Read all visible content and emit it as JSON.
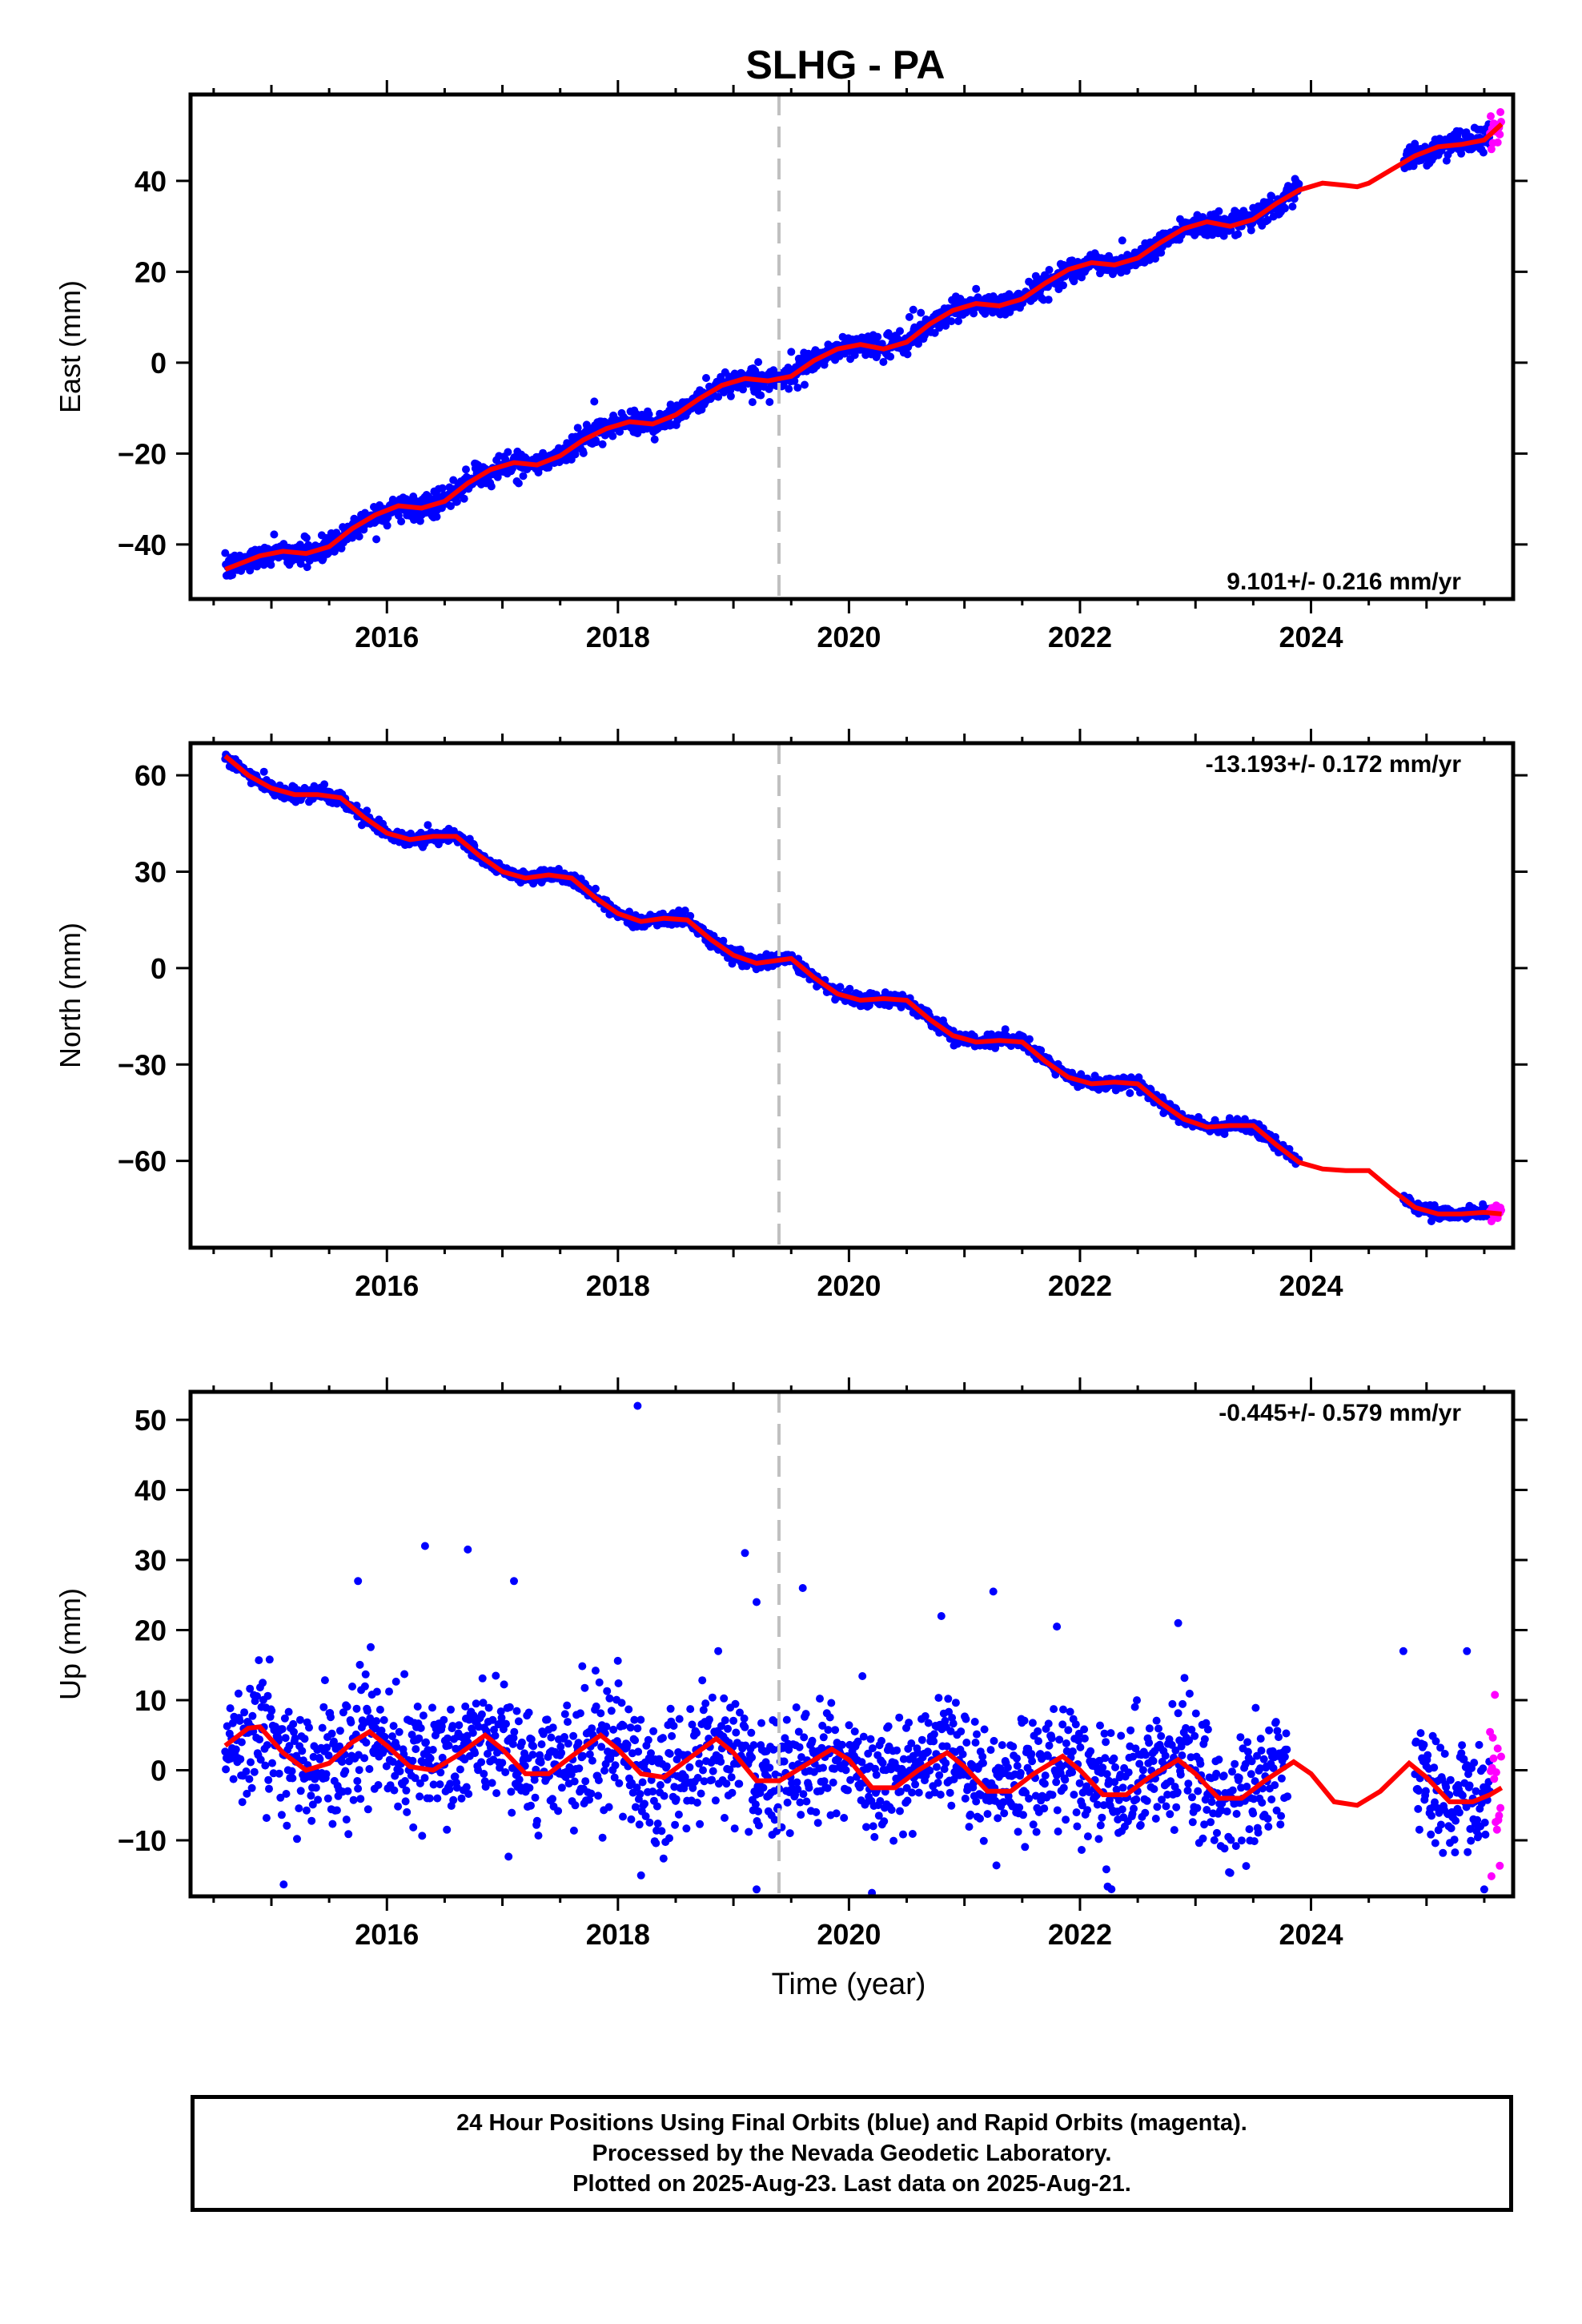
{
  "chart_data": {
    "type": "scatter",
    "title": "SLHG - PA",
    "xlabel": "Time (year)",
    "x_tick_labels": [
      "2016",
      "2018",
      "2020",
      "2022",
      "2024"
    ],
    "xlim": [
      2014.3,
      2025.75
    ],
    "vertical_reference_line_x": 2019.5,
    "grid": false,
    "colors": {
      "final_orbits": "#0000ff",
      "rapid_orbits": "#ff00ff",
      "model_fit": "#ff0000",
      "reference_line": "#c0c0c0"
    },
    "panels": [
      {
        "id": "east",
        "ylabel": "East (mm)",
        "ylim": [
          -52,
          59
        ],
        "y_ticks": [
          -40,
          -20,
          0,
          20,
          40
        ],
        "y_tick_labels": [
          "−40",
          "−20",
          "0",
          "20",
          "40"
        ],
        "rate_label": "9.101+/- 0.216 mm/yr",
        "rate_label_position": "bottom-right",
        "final_orbit_coverage": [
          [
            2014.6,
            2023.9
          ],
          [
            2024.8,
            2025.55
          ]
        ],
        "rapid_orbit_coverage": [
          2025.55,
          2025.65
        ],
        "fit_curve": [
          [
            2014.6,
            -45.5
          ],
          [
            2014.9,
            -42.5
          ],
          [
            2015.1,
            -41.5
          ],
          [
            2015.3,
            -42.0
          ],
          [
            2015.5,
            -40.5
          ],
          [
            2015.7,
            -36.5
          ],
          [
            2015.9,
            -33.5
          ],
          [
            2016.1,
            -31.5
          ],
          [
            2016.3,
            -32.0
          ],
          [
            2016.5,
            -30.5
          ],
          [
            2016.7,
            -26.5
          ],
          [
            2016.9,
            -23.5
          ],
          [
            2017.1,
            -22.0
          ],
          [
            2017.3,
            -22.5
          ],
          [
            2017.5,
            -20.5
          ],
          [
            2017.7,
            -17.0
          ],
          [
            2017.9,
            -14.5
          ],
          [
            2018.1,
            -13.0
          ],
          [
            2018.3,
            -13.5
          ],
          [
            2018.5,
            -11.5
          ],
          [
            2018.7,
            -8.0
          ],
          [
            2018.9,
            -5.0
          ],
          [
            2019.1,
            -3.5
          ],
          [
            2019.3,
            -4.0
          ],
          [
            2019.5,
            -3.0
          ],
          [
            2019.7,
            0.5
          ],
          [
            2019.9,
            3.0
          ],
          [
            2020.1,
            4.0
          ],
          [
            2020.3,
            3.0
          ],
          [
            2020.5,
            4.5
          ],
          [
            2020.7,
            8.5
          ],
          [
            2020.9,
            11.5
          ],
          [
            2021.1,
            13.0
          ],
          [
            2021.3,
            12.5
          ],
          [
            2021.5,
            14.0
          ],
          [
            2021.7,
            17.5
          ],
          [
            2021.9,
            20.5
          ],
          [
            2022.1,
            22.0
          ],
          [
            2022.3,
            21.5
          ],
          [
            2022.5,
            23.0
          ],
          [
            2022.7,
            26.5
          ],
          [
            2022.9,
            29.5
          ],
          [
            2023.1,
            31.0
          ],
          [
            2023.3,
            30.0
          ],
          [
            2023.5,
            31.5
          ],
          [
            2023.7,
            35.0
          ],
          [
            2023.9,
            38.0
          ],
          [
            2024.1,
            39.5
          ],
          [
            2024.3,
            39.0
          ],
          [
            2024.4,
            38.7
          ],
          [
            2024.5,
            39.5
          ],
          [
            2024.7,
            42.5
          ],
          [
            2024.9,
            45.5
          ],
          [
            2025.1,
            47.5
          ],
          [
            2025.3,
            48.0
          ],
          [
            2025.5,
            49.0
          ],
          [
            2025.65,
            52.5
          ]
        ]
      },
      {
        "id": "north",
        "ylabel": "North (mm)",
        "ylim": [
          -87,
          70
        ],
        "y_ticks": [
          -60,
          -30,
          0,
          30,
          60
        ],
        "y_tick_labels": [
          "−60",
          "−30",
          "0",
          "30",
          "60"
        ],
        "rate_label": "-13.193+/- 0.172 mm/yr",
        "rate_label_position": "top-right",
        "final_orbit_coverage": [
          [
            2014.6,
            2023.9
          ],
          [
            2024.8,
            2025.55
          ]
        ],
        "rapid_orbit_coverage": [
          2025.55,
          2025.65
        ],
        "fit_curve": [
          [
            2014.6,
            66.0
          ],
          [
            2014.8,
            60.0
          ],
          [
            2015.0,
            56.0
          ],
          [
            2015.2,
            54.0
          ],
          [
            2015.4,
            54.0
          ],
          [
            2015.6,
            53.0
          ],
          [
            2015.8,
            47.0
          ],
          [
            2016.0,
            42.0
          ],
          [
            2016.2,
            40.0
          ],
          [
            2016.4,
            41.0
          ],
          [
            2016.6,
            41.0
          ],
          [
            2016.8,
            35.0
          ],
          [
            2017.0,
            30.0
          ],
          [
            2017.2,
            28.0
          ],
          [
            2017.4,
            29.0
          ],
          [
            2017.6,
            28.0
          ],
          [
            2017.8,
            22.0
          ],
          [
            2018.0,
            17.0
          ],
          [
            2018.2,
            14.5
          ],
          [
            2018.4,
            15.5
          ],
          [
            2018.6,
            15.0
          ],
          [
            2018.8,
            9.0
          ],
          [
            2019.0,
            4.0
          ],
          [
            2019.2,
            1.5
          ],
          [
            2019.4,
            2.5
          ],
          [
            2019.5,
            3.0
          ],
          [
            2019.7,
            -3.0
          ],
          [
            2019.9,
            -8.0
          ],
          [
            2020.1,
            -10.0
          ],
          [
            2020.3,
            -9.5
          ],
          [
            2020.5,
            -10.0
          ],
          [
            2020.7,
            -16.0
          ],
          [
            2020.9,
            -21.0
          ],
          [
            2021.1,
            -23.0
          ],
          [
            2021.3,
            -22.5
          ],
          [
            2021.5,
            -23.0
          ],
          [
            2021.7,
            -29.0
          ],
          [
            2021.9,
            -34.0
          ],
          [
            2022.1,
            -36.0
          ],
          [
            2022.3,
            -35.5
          ],
          [
            2022.5,
            -36.0
          ],
          [
            2022.7,
            -42.0
          ],
          [
            2022.9,
            -47.0
          ],
          [
            2023.1,
            -49.5
          ],
          [
            2023.3,
            -49.0
          ],
          [
            2023.5,
            -49.0
          ],
          [
            2023.7,
            -55.0
          ],
          [
            2023.9,
            -60.5
          ],
          [
            2024.1,
            -62.5
          ],
          [
            2024.3,
            -63.0
          ],
          [
            2024.5,
            -63.0
          ],
          [
            2024.7,
            -69.0
          ],
          [
            2024.9,
            -74.5
          ],
          [
            2025.1,
            -76.5
          ],
          [
            2025.3,
            -76.5
          ],
          [
            2025.5,
            -76.0
          ],
          [
            2025.65,
            -76.5
          ]
        ]
      },
      {
        "id": "up",
        "ylabel": "Up (mm)",
        "ylim": [
          -18,
          54
        ],
        "y_ticks": [
          -10,
          0,
          10,
          20,
          30,
          40,
          50
        ],
        "y_tick_labels": [
          "−10",
          "0",
          "10",
          "20",
          "30",
          "40",
          "50"
        ],
        "rate_label": "-0.445+/- 0.579 mm/yr",
        "rate_label_position": "top-right",
        "final_orbit_coverage": [
          [
            2014.6,
            2023.8
          ],
          [
            2024.9,
            2025.55
          ]
        ],
        "rapid_orbit_coverage": [
          2025.55,
          2025.65
        ],
        "fit_curve": [
          [
            2014.6,
            3.5
          ],
          [
            2014.8,
            6.0
          ],
          [
            2014.9,
            6.2
          ],
          [
            2015.1,
            2.5
          ],
          [
            2015.3,
            0.0
          ],
          [
            2015.5,
            1.0
          ],
          [
            2015.7,
            4.0
          ],
          [
            2015.85,
            5.5
          ],
          [
            2016.0,
            3.5
          ],
          [
            2016.2,
            0.5
          ],
          [
            2016.4,
            0.0
          ],
          [
            2016.6,
            2.0
          ],
          [
            2016.85,
            5.0
          ],
          [
            2017.0,
            3.0
          ],
          [
            2017.2,
            -0.5
          ],
          [
            2017.4,
            -0.5
          ],
          [
            2017.6,
            2.0
          ],
          [
            2017.85,
            5.0
          ],
          [
            2018.0,
            3.0
          ],
          [
            2018.2,
            -0.5
          ],
          [
            2018.4,
            -1.0
          ],
          [
            2018.6,
            1.5
          ],
          [
            2018.85,
            4.5
          ],
          [
            2019.0,
            2.5
          ],
          [
            2019.2,
            -1.5
          ],
          [
            2019.4,
            -1.5
          ],
          [
            2019.6,
            0.5
          ],
          [
            2019.85,
            3.0
          ],
          [
            2020.0,
            1.5
          ],
          [
            2020.2,
            -2.5
          ],
          [
            2020.4,
            -2.5
          ],
          [
            2020.6,
            0.0
          ],
          [
            2020.85,
            2.5
          ],
          [
            2021.0,
            0.5
          ],
          [
            2021.2,
            -3.0
          ],
          [
            2021.4,
            -3.0
          ],
          [
            2021.6,
            -0.5
          ],
          [
            2021.85,
            2.0
          ],
          [
            2022.0,
            0.0
          ],
          [
            2022.2,
            -3.5
          ],
          [
            2022.4,
            -3.5
          ],
          [
            2022.6,
            -1.0
          ],
          [
            2022.85,
            1.5
          ],
          [
            2023.0,
            -0.5
          ],
          [
            2023.2,
            -4.0
          ],
          [
            2023.4,
            -4.0
          ],
          [
            2023.6,
            -1.5
          ],
          [
            2023.85,
            1.2
          ],
          [
            2024.0,
            -0.5
          ],
          [
            2024.2,
            -4.5
          ],
          [
            2024.4,
            -5.0
          ],
          [
            2024.6,
            -3.0
          ],
          [
            2024.85,
            1.0
          ],
          [
            2025.0,
            -1.0
          ],
          [
            2025.2,
            -4.5
          ],
          [
            2025.4,
            -4.5
          ],
          [
            2025.55,
            -3.5
          ],
          [
            2025.65,
            -2.5
          ]
        ],
        "outliers": [
          [
            2018.17,
            52
          ],
          [
            2016.33,
            32
          ],
          [
            2016.7,
            31.5
          ],
          [
            2019.1,
            31
          ],
          [
            2017.1,
            27
          ],
          [
            2015.75,
            27
          ],
          [
            2019.6,
            26
          ],
          [
            2021.25,
            25.5
          ],
          [
            2019.2,
            24
          ],
          [
            2020.8,
            22
          ],
          [
            2022.85,
            21
          ],
          [
            2021.8,
            20.5
          ],
          [
            2024.8,
            17
          ],
          [
            2025.35,
            17
          ],
          [
            2019.2,
            -17
          ],
          [
            2018.2,
            -15
          ],
          [
            2025.5,
            -17
          ]
        ]
      }
    ]
  },
  "caption": {
    "lines": [
      "24 Hour Positions Using Final Orbits (blue) and Rapid Orbits (magenta).",
      "Processed by the Nevada Geodetic Laboratory.",
      "Plotted on 2025-Aug-23. Last data on 2025-Aug-21."
    ]
  }
}
